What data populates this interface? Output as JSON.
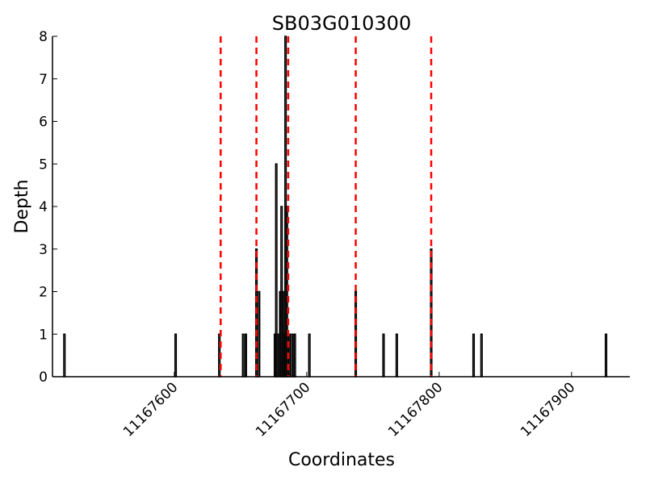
{
  "chart_data": {
    "type": "bar",
    "title": "SB03G010300",
    "xlabel": "Coordinates",
    "ylabel": "Depth",
    "xlim": [
      11167508,
      11167944
    ],
    "ylim": [
      0,
      8
    ],
    "yticks": [
      0,
      1,
      2,
      3,
      4,
      5,
      6,
      7,
      8
    ],
    "xticks": [
      11167600,
      11167700,
      11167800,
      11167900
    ],
    "grid": false,
    "bar_color": "#000000",
    "marker_color": "#ff0000",
    "bars": [
      {
        "x": 11167517,
        "y": 1
      },
      {
        "x": 11167601,
        "y": 1
      },
      {
        "x": 11167634,
        "y": 1
      },
      {
        "x": 11167652,
        "y": 1
      },
      {
        "x": 11167654,
        "y": 1
      },
      {
        "x": 11167662,
        "y": 3
      },
      {
        "x": 11167664,
        "y": 2
      },
      {
        "x": 11167676,
        "y": 1
      },
      {
        "x": 11167677,
        "y": 5
      },
      {
        "x": 11167678,
        "y": 1
      },
      {
        "x": 11167680,
        "y": 2
      },
      {
        "x": 11167681,
        "y": 4
      },
      {
        "x": 11167682,
        "y": 2
      },
      {
        "x": 11167683,
        "y": 1
      },
      {
        "x": 11167684,
        "y": 8
      },
      {
        "x": 11167685,
        "y": 4
      },
      {
        "x": 11167686,
        "y": 1
      },
      {
        "x": 11167688,
        "y": 1
      },
      {
        "x": 11167690,
        "y": 1
      },
      {
        "x": 11167691,
        "y": 1
      },
      {
        "x": 11167702,
        "y": 1
      },
      {
        "x": 11167737,
        "y": 2
      },
      {
        "x": 11167758,
        "y": 1
      },
      {
        "x": 11167768,
        "y": 1
      },
      {
        "x": 11167794,
        "y": 3
      },
      {
        "x": 11167826,
        "y": 1
      },
      {
        "x": 11167832,
        "y": 1
      },
      {
        "x": 11167926,
        "y": 1
      }
    ],
    "markers": [
      11167635,
      11167662,
      11167686,
      11167737,
      11167794
    ]
  }
}
